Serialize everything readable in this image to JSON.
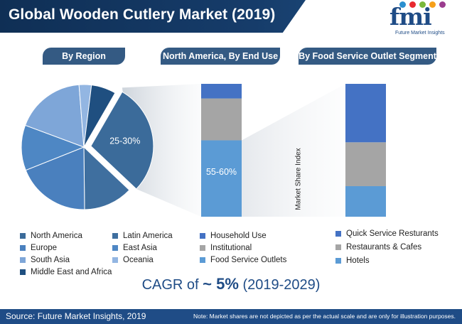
{
  "header": {
    "title": "Global Wooden Cutlery Market  (2019)"
  },
  "logo": {
    "text": "fmi",
    "tagline": "Future Market Insights",
    "dot_colors": [
      "#2b8fcf",
      "#e8292f",
      "#79b83b",
      "#f6a01a",
      "#9b3d8f"
    ]
  },
  "sections": {
    "region": "By Region",
    "north_america": "North America, By End Use",
    "food_service": "By Food Service Outlet Segment"
  },
  "chart_data": [
    {
      "type": "pie",
      "title": "By Region",
      "slices": [
        {
          "name": "North America",
          "value": 27,
          "color": "#3b6b9a",
          "label": "25-30%",
          "exploded": true
        },
        {
          "name": "Latin America",
          "value": 12,
          "color": "#3f6f9f"
        },
        {
          "name": "Europe",
          "value": 18,
          "color": "#4a80be"
        },
        {
          "name": "East Asia",
          "value": 11,
          "color": "#4e87c4"
        },
        {
          "name": "South Asia",
          "value": 17,
          "color": "#7ea6d8"
        },
        {
          "name": "Oceania",
          "value": 3,
          "color": "#93b6e2"
        },
        {
          "name": "Middle East and Africa",
          "value": 6,
          "color": "#1f4f80"
        }
      ]
    },
    {
      "type": "bar",
      "stacked": true,
      "title": "North America, By End Use",
      "ylim": [
        0,
        100
      ],
      "series": [
        {
          "name": "Food Service Outlets",
          "values": [
            57.5
          ],
          "color": "#5b9bd5",
          "label": "55-60%"
        },
        {
          "name": "Institutional",
          "values": [
            31.5
          ],
          "color": "#a5a5a5"
        },
        {
          "name": "Household Use",
          "values": [
            11
          ],
          "color": "#4472c4"
        }
      ]
    },
    {
      "type": "bar",
      "stacked": true,
      "title": "By Food Service Outlet Segment",
      "ylabel": "Market Share Index",
      "ylim": [
        0,
        100
      ],
      "series": [
        {
          "name": "Hotels",
          "values": [
            23
          ],
          "color": "#5b9bd5"
        },
        {
          "name": "Restaurants & Cafes",
          "values": [
            33
          ],
          "color": "#a5a5a5"
        },
        {
          "name": "Quick Service Resturants",
          "values": [
            44
          ],
          "color": "#4472c4"
        }
      ]
    }
  ],
  "legends": {
    "region_col1": [
      {
        "label": "North America",
        "color": "#3b6b9a"
      },
      {
        "label": "Europe",
        "color": "#4a80be"
      },
      {
        "label": "South Asia",
        "color": "#7ea6d8"
      },
      {
        "label": "Middle East and Africa",
        "color": "#1f4f80"
      }
    ],
    "region_col2": [
      {
        "label": "Latin America",
        "color": "#3f6f9f"
      },
      {
        "label": "East Asia",
        "color": "#4e87c4"
      },
      {
        "label": "Oceania",
        "color": "#93b6e2"
      }
    ],
    "end_use": [
      {
        "label": "Household Use",
        "color": "#4472c4"
      },
      {
        "label": "Institutional",
        "color": "#a5a5a5"
      },
      {
        "label": "Food Service Outlets",
        "color": "#5b9bd5"
      }
    ],
    "outlet": [
      {
        "label": "Quick Service Resturants",
        "color": "#4472c4"
      },
      {
        "label": "Restaurants & Cafes",
        "color": "#a5a5a5"
      },
      {
        "label": "Hotels",
        "color": "#5b9bd5"
      }
    ]
  },
  "cagr": {
    "prefix": "CAGR of ",
    "value": "~ 5%",
    "period": " (2019-2029)"
  },
  "footer": {
    "source": "Source: Future Market Insights, 2019",
    "note": "Note: Market shares are not depicted as per the actual scale and are only for illustration purposes."
  }
}
